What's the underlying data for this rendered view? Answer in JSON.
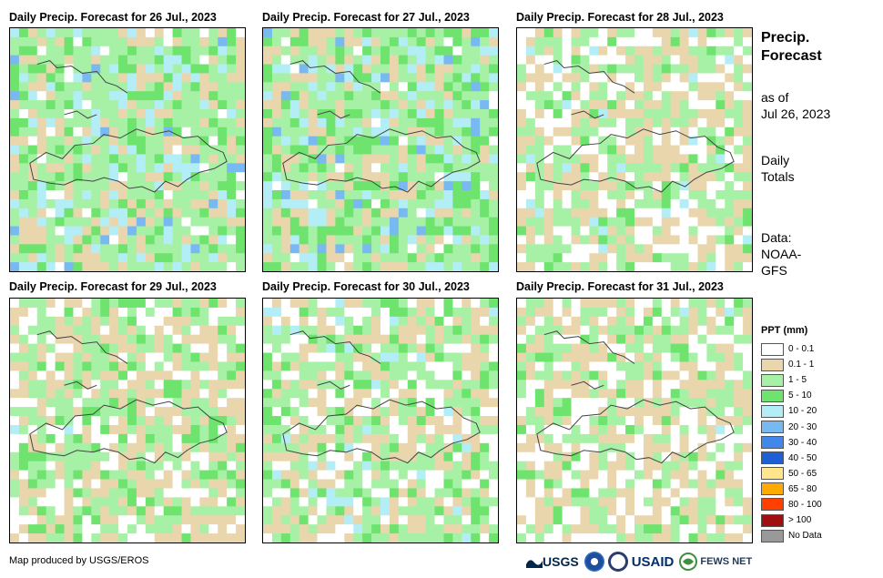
{
  "panels": [
    {
      "title": "Daily Precip. Forecast for 26 Jul., 2023"
    },
    {
      "title": "Daily Precip. Forecast for 27 Jul., 2023"
    },
    {
      "title": "Daily Precip. Forecast for 28 Jul., 2023"
    },
    {
      "title": "Daily Precip. Forecast for 29 Jul., 2023"
    },
    {
      "title": "Daily Precip. Forecast for 30 Jul., 2023"
    },
    {
      "title": "Daily Precip. Forecast for 31 Jul., 2023"
    }
  ],
  "sidebar": {
    "title_line1": "Precip.",
    "title_line2": "Forecast",
    "asof_line1": "as of",
    "asof_line2": "Jul 26, 2023",
    "totals_line1": "Daily",
    "totals_line2": "Totals",
    "data_line1": "Data:",
    "data_line2": "NOAA-",
    "data_line3": "GFS"
  },
  "legend": {
    "title": "PPT (mm)",
    "items": [
      {
        "label": "0 - 0.1",
        "color": "#ffffff"
      },
      {
        "label": "0.1 - 1",
        "color": "#ead6ad"
      },
      {
        "label": "1 - 5",
        "color": "#a6f1a6"
      },
      {
        "label": "5 - 10",
        "color": "#6ee36e"
      },
      {
        "label": "10 - 20",
        "color": "#b3eef7"
      },
      {
        "label": "20 - 30",
        "color": "#78b9f2"
      },
      {
        "label": "30 - 40",
        "color": "#4287ea"
      },
      {
        "label": "40 - 50",
        "color": "#1f5fd6"
      },
      {
        "label": "50 - 65",
        "color": "#ffe68c"
      },
      {
        "label": "65 - 80",
        "color": "#ffaa00"
      },
      {
        "label": "80 - 100",
        "color": "#ff4000"
      },
      {
        "label": "> 100",
        "color": "#a01010"
      },
      {
        "label": "No Data",
        "color": "#999999"
      }
    ]
  },
  "footer": {
    "credit": "Map produced by USGS/EROS",
    "logo_usgs": "USGS",
    "logo_usaid": "USAID",
    "logo_fews": "FEWS NET"
  }
}
